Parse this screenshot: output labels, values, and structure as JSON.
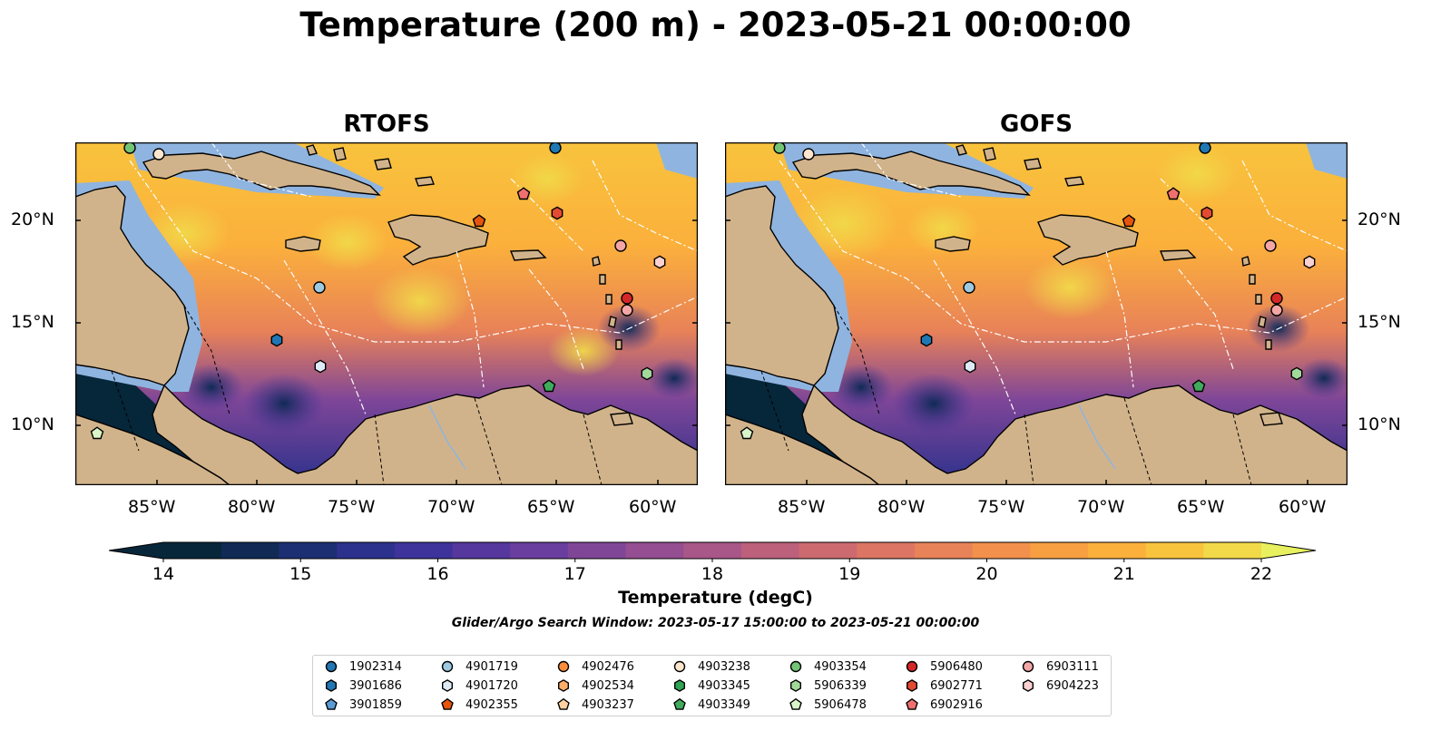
{
  "title": "Temperature (200 m) - 2023-05-21 00:00:00",
  "panels": [
    {
      "title": "RTOFS"
    },
    {
      "title": "GOFS"
    }
  ],
  "axes": {
    "x_ticks": [
      "85°W",
      "80°W",
      "75°W",
      "70°W",
      "65°W",
      "60°W"
    ],
    "y_ticks": [
      "20°N",
      "15°N",
      "10°N"
    ]
  },
  "colorbar": {
    "ticks": [
      "14",
      "15",
      "16",
      "17",
      "18",
      "19",
      "20",
      "21",
      "22"
    ],
    "label": "Temperature (degC)",
    "colors": [
      "#08263a",
      "#102a55",
      "#1c2f72",
      "#2b318c",
      "#3e339a",
      "#55379e",
      "#6a3e9e",
      "#7f4698",
      "#944e91",
      "#a85788",
      "#bc607c",
      "#cc6a70",
      "#dc7564",
      "#e88258",
      "#f2904c",
      "#f89f42",
      "#fbb03c",
      "#f8c33d",
      "#f1d949",
      "#e8f05f"
    ]
  },
  "search_window": "Glider/Argo Search Window: 2023-05-17 15:00:00 to 2023-05-21 00:00:00",
  "legend": [
    {
      "id": "1902314",
      "color": "#1f77b4",
      "marker": "circle"
    },
    {
      "id": "3901686",
      "color": "#1f77b4",
      "marker": "hexagon"
    },
    {
      "id": "3901859",
      "color": "#5b9bd5",
      "marker": "pentagon"
    },
    {
      "id": "4901719",
      "color": "#9ecae1",
      "marker": "circle"
    },
    {
      "id": "4901720",
      "color": "#deebf7",
      "marker": "hexagon"
    },
    {
      "id": "4902355",
      "color": "#e6550d",
      "marker": "pentagon"
    },
    {
      "id": "4902476",
      "color": "#fd8d3c",
      "marker": "circle"
    },
    {
      "id": "4902534",
      "color": "#fdae6b",
      "marker": "hexagon"
    },
    {
      "id": "4903237",
      "color": "#fdd0a2",
      "marker": "pentagon"
    },
    {
      "id": "4903238",
      "color": "#fee6ce",
      "marker": "circle"
    },
    {
      "id": "4903345",
      "color": "#31a354",
      "marker": "hexagon"
    },
    {
      "id": "4903349",
      "color": "#41ab5d",
      "marker": "pentagon"
    },
    {
      "id": "4903354",
      "color": "#74c476",
      "marker": "circle"
    },
    {
      "id": "5906339",
      "color": "#a1d99b",
      "marker": "hexagon"
    },
    {
      "id": "5906478",
      "color": "#d9f5c9",
      "marker": "pentagon"
    },
    {
      "id": "5906480",
      "color": "#d62728",
      "marker": "circle"
    },
    {
      "id": "6902771",
      "color": "#e34a33",
      "marker": "hexagon"
    },
    {
      "id": "6902916",
      "color": "#f07070",
      "marker": "pentagon"
    },
    {
      "id": "6903111",
      "color": "#f4a6a6",
      "marker": "circle"
    },
    {
      "id": "6904223",
      "color": "#fbd0d0",
      "marker": "hexagon"
    }
  ]
}
